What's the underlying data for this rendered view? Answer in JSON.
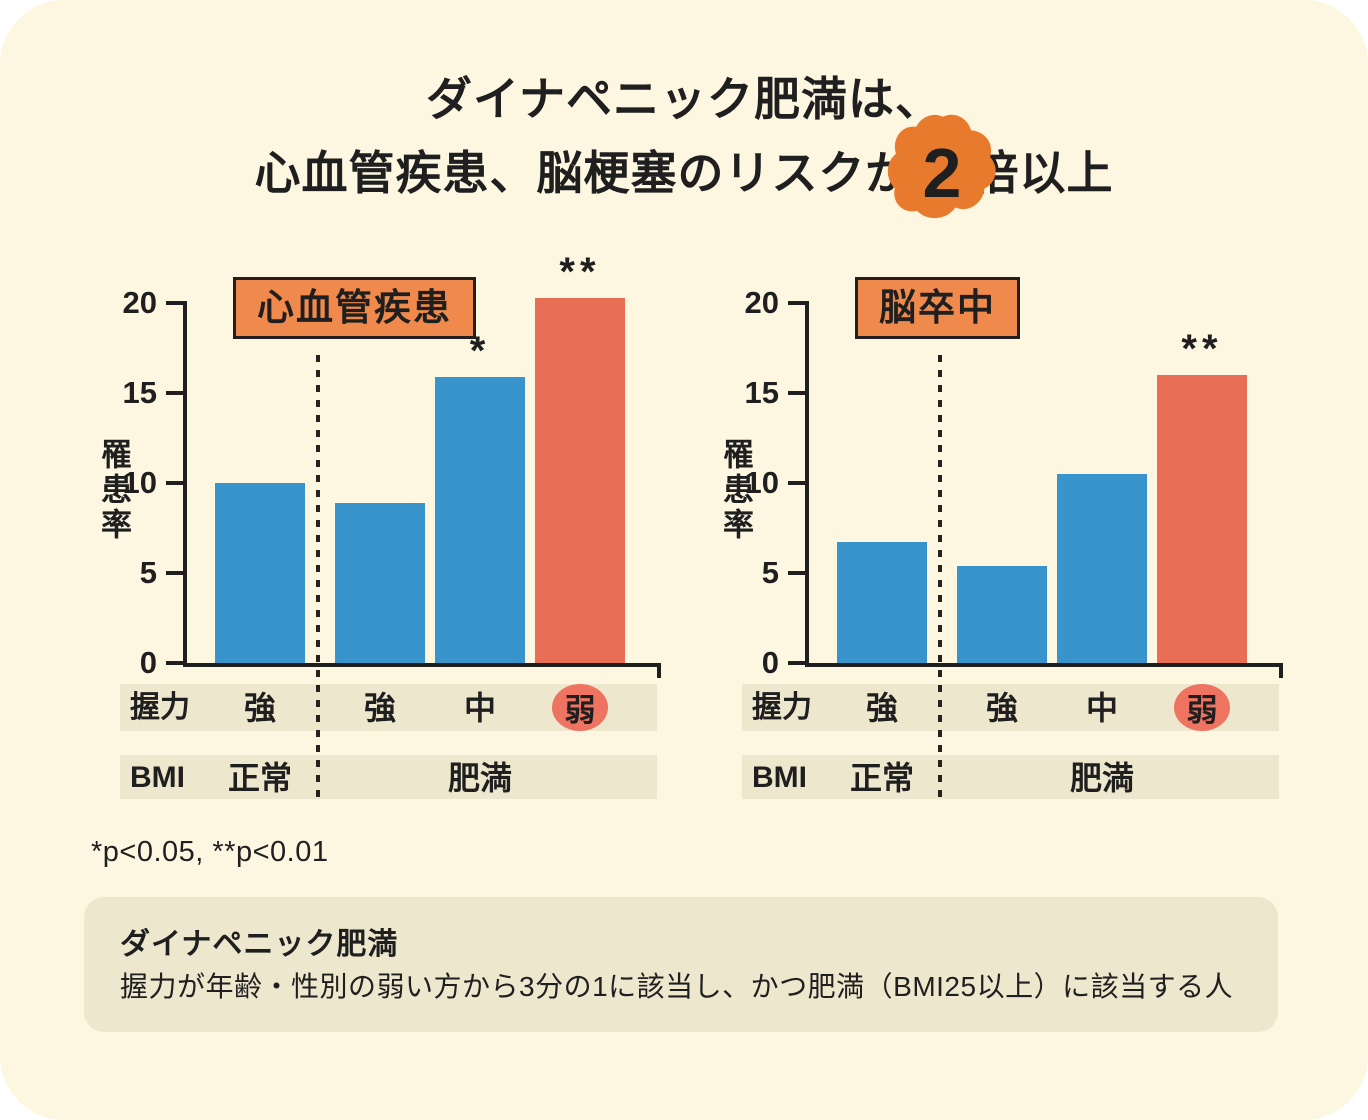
{
  "title": {
    "line1": "ダイナペニック肥満は、",
    "line2_before": "心血管疾患、脳梗塞のリスクが",
    "line2_highlight": "2",
    "line2_after": "倍以上"
  },
  "pnote": "*p<0.05, **p<0.01",
  "footer": {
    "title": "ダイナペニック肥満",
    "body": "握力が年齢・性別の弱い方から3分の1に該当し、かつ肥満（BMI25以上）に該当する人"
  },
  "colors": {
    "card_bg": "#FDF7E2",
    "bar_blue": "#3894CA",
    "bar_red": "#E86E55",
    "chart_label_box": "#F08A4C",
    "title_blob": "#E87A2E",
    "band_bg": "#EDE7CE",
    "weak_circle": "#EE7361",
    "axis_text": "#1F1F1F"
  },
  "chart_data": [
    {
      "type": "bar",
      "title": "心血管疾患",
      "ylabel": "罹患率",
      "ylim": [
        0,
        20
      ],
      "yticks": [
        0,
        5,
        10,
        15,
        20
      ],
      "grid": false,
      "legend": "none",
      "row_headers": {
        "grip": "握力",
        "bmi": "BMI"
      },
      "categories": [
        "強",
        "強",
        "中",
        "弱"
      ],
      "bmi_groups": [
        "正常",
        "肥満"
      ],
      "values": [
        10,
        8.9,
        15.9,
        20.3
      ],
      "significance": [
        "",
        "",
        "*",
        "**"
      ],
      "bar_colors": [
        "blue",
        "blue",
        "blue",
        "red"
      ],
      "separator_after_bar": 1
    },
    {
      "type": "bar",
      "title": "脳卒中",
      "ylabel": "罹患率",
      "ylim": [
        0,
        20
      ],
      "yticks": [
        0,
        5,
        10,
        15,
        20
      ],
      "grid": false,
      "legend": "none",
      "row_headers": {
        "grip": "握力",
        "bmi": "BMI"
      },
      "categories": [
        "強",
        "強",
        "中",
        "弱"
      ],
      "bmi_groups": [
        "正常",
        "肥満"
      ],
      "values": [
        6.7,
        5.4,
        10.5,
        16
      ],
      "significance": [
        "",
        "",
        "",
        "**"
      ],
      "bar_colors": [
        "blue",
        "blue",
        "blue",
        "red"
      ],
      "separator_after_bar": 1
    }
  ]
}
